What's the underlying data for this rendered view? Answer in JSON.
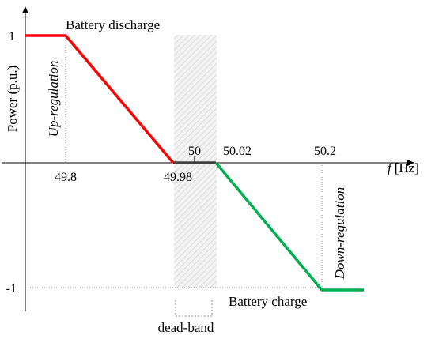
{
  "chart_data": {
    "type": "line",
    "title": "",
    "xlabel": "f [Hz]",
    "ylabel": "Power (p.u.)",
    "xlabel_var": "f",
    "xlabel_unit": "[Hz]",
    "ylim": [
      -1,
      1
    ],
    "y_ticks": [
      "1",
      "-1"
    ],
    "x_ticks": [
      {
        "label": "49.8",
        "value": 49.8
      },
      {
        "label": "49.98",
        "value": 49.98
      },
      {
        "label": "50",
        "value": 50
      },
      {
        "label": "50.02",
        "value": 50.02
      },
      {
        "label": "50.2",
        "value": 50.2
      }
    ],
    "series": [
      {
        "color": "#ff0000",
        "x": [
          49.8,
          49.8,
          49.98
        ],
        "y": [
          1,
          1,
          0
        ],
        "x_start_offset": true
      },
      {
        "color": "#404040",
        "x": [
          49.98,
          50.02
        ],
        "y": [
          0,
          0
        ]
      },
      {
        "color": "#00b050",
        "x": [
          50.02,
          50.2,
          50.2
        ],
        "y": [
          0,
          -1,
          -1
        ],
        "x_end_offset": true
      }
    ],
    "annotations": {
      "battery_discharge": "Battery discharge",
      "battery_charge": "Battery charge",
      "up_regulation": "Up-regulation",
      "down_regulation": "Down-regulation",
      "dead_band": "dead-band"
    },
    "dead_band_range": [
      49.98,
      50.02
    ],
    "legend": "none",
    "grid": false
  }
}
